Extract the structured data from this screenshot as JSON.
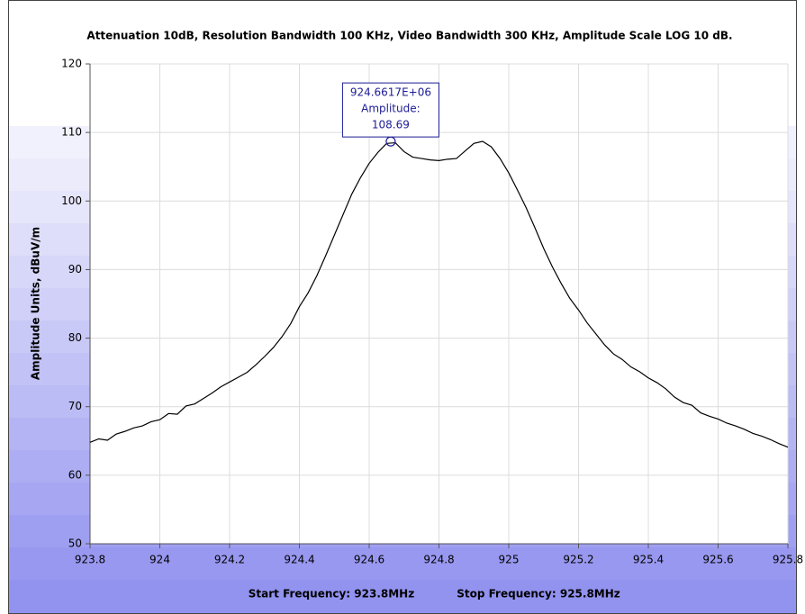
{
  "chart_data": {
    "type": "line",
    "title": "Attenuation 10dB, Resolution Bandwidth 100 KHz, Video Bandwidth 300 KHz, Amplitude Scale LOG 10 dB.",
    "y_label": "Amplitude Units, dBuV/m",
    "footer": [
      "Start Frequency: 923.8MHz",
      "Stop Frequency: 925.8MHz"
    ],
    "xlim": [
      923.8,
      925.8
    ],
    "xticks": [
      923.8,
      924,
      924.2,
      924.4,
      924.6,
      924.8,
      925,
      925.2,
      925.4,
      925.6,
      925.8
    ],
    "ylim": [
      50,
      120
    ],
    "yticks": [
      50,
      60,
      70,
      80,
      90,
      100,
      110,
      120
    ],
    "grid": true,
    "x": [
      923.8,
      923.825,
      923.85,
      923.875,
      923.9,
      923.925,
      923.95,
      923.975,
      924.0,
      924.025,
      924.05,
      924.075,
      924.1,
      924.125,
      924.15,
      924.175,
      924.2,
      924.225,
      924.25,
      924.275,
      924.3,
      924.325,
      924.35,
      924.375,
      924.4,
      924.425,
      924.45,
      924.475,
      924.5,
      924.525,
      924.55,
      924.575,
      924.6,
      924.625,
      924.65,
      924.675,
      924.7,
      924.725,
      924.75,
      924.775,
      924.8,
      924.825,
      924.85,
      924.875,
      924.9,
      924.925,
      924.95,
      924.975,
      925.0,
      925.025,
      925.05,
      925.075,
      925.1,
      925.125,
      925.15,
      925.175,
      925.2,
      925.225,
      925.25,
      925.275,
      925.3,
      925.325,
      925.35,
      925.375,
      925.4,
      925.425,
      925.45,
      925.475,
      925.5,
      925.525,
      925.55,
      925.575,
      925.6,
      925.625,
      925.65,
      925.675,
      925.7,
      925.725,
      925.75,
      925.775,
      925.8
    ],
    "series": [
      {
        "color": "#000000",
        "values": [
          64.8,
          65.3,
          65.1,
          66.0,
          66.4,
          66.9,
          67.2,
          67.8,
          68.1,
          69.0,
          68.9,
          70.1,
          70.4,
          71.2,
          72.0,
          72.9,
          73.6,
          74.3,
          75.0,
          76.1,
          77.3,
          78.6,
          80.2,
          82.1,
          84.6,
          86.6,
          89.1,
          92.0,
          95.0,
          98.0,
          101.0,
          103.4,
          105.5,
          107.1,
          108.4,
          108.5,
          107.2,
          106.4,
          106.2,
          106.0,
          105.9,
          106.1,
          106.2,
          107.3,
          108.4,
          108.7,
          107.9,
          106.2,
          104.1,
          101.6,
          99.0,
          96.1,
          93.1,
          90.4,
          88.0,
          85.8,
          84.1,
          82.2,
          80.6,
          79.0,
          77.7,
          76.9,
          75.8,
          75.1,
          74.2,
          73.5,
          72.6,
          71.4,
          70.6,
          70.2,
          69.1,
          68.6,
          68.2,
          67.6,
          67.2,
          66.7,
          66.1,
          65.7,
          65.2,
          64.6,
          64.1
        ]
      }
    ],
    "annotation": {
      "x": 924.6617,
      "x_label": "924.6617E+06",
      "label": "Amplitude:",
      "y": 108.69,
      "color": "#1c1c96"
    }
  }
}
